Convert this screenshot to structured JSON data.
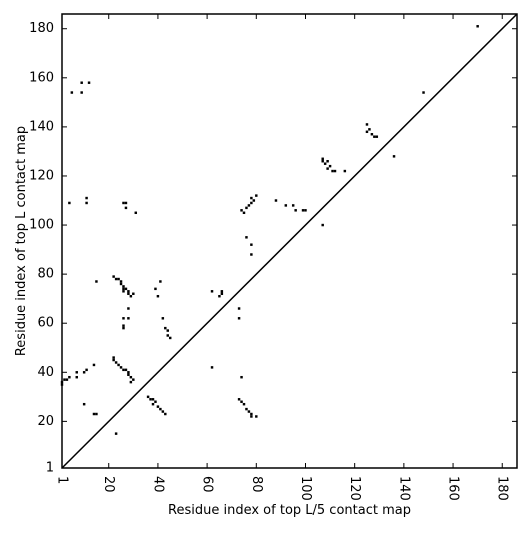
{
  "chart_data": {
    "type": "scatter",
    "title": "",
    "xlabel": "Residue index of top L/5 contact map",
    "ylabel": "Residue index of top L contact map",
    "xlim": [
      1,
      186
    ],
    "ylim": [
      1,
      186
    ],
    "xticks": [
      1,
      20,
      40,
      60,
      80,
      100,
      120,
      140,
      160,
      180
    ],
    "yticks": [
      1,
      20,
      40,
      60,
      80,
      100,
      120,
      140,
      160,
      180
    ],
    "xtick_labels": [
      "1",
      "20",
      "40",
      "60",
      "80",
      "100",
      "120",
      "140",
      "160",
      "180"
    ],
    "ytick_labels": [
      "1",
      "20",
      "40",
      "60",
      "80",
      "100",
      "120",
      "140",
      "160",
      "180"
    ],
    "grid": false,
    "diagonal": true,
    "marker_color": "#000000",
    "upper_triangle_points": [
      [
        4,
        109
      ],
      [
        11,
        111
      ],
      [
        11,
        109
      ],
      [
        5,
        154
      ],
      [
        9,
        158
      ],
      [
        9,
        154
      ],
      [
        12,
        158
      ],
      [
        26,
        109
      ],
      [
        27,
        109
      ],
      [
        27,
        107
      ],
      [
        31,
        105
      ],
      [
        75,
        105
      ],
      [
        74,
        106
      ],
      [
        76,
        107
      ],
      [
        77,
        108
      ],
      [
        78,
        109
      ],
      [
        79,
        110
      ],
      [
        78,
        111
      ],
      [
        80,
        112
      ],
      [
        88,
        110
      ],
      [
        92,
        108
      ],
      [
        95,
        108
      ],
      [
        96,
        106
      ],
      [
        99,
        106
      ],
      [
        100,
        106
      ],
      [
        107,
        100
      ],
      [
        107,
        127
      ],
      [
        107,
        126
      ],
      [
        108,
        125
      ],
      [
        109,
        126
      ],
      [
        110,
        124
      ],
      [
        109,
        123
      ],
      [
        111,
        122
      ],
      [
        112,
        122
      ],
      [
        116,
        122
      ],
      [
        125,
        141
      ],
      [
        126,
        139
      ],
      [
        125,
        138
      ],
      [
        127,
        137
      ],
      [
        128,
        136
      ],
      [
        129,
        136
      ],
      [
        136,
        128
      ],
      [
        148,
        154
      ],
      [
        170,
        181
      ]
    ],
    "lower_triangle_points": [
      [
        1,
        35
      ],
      [
        1,
        36
      ],
      [
        2,
        37
      ],
      [
        3,
        37
      ],
      [
        4,
        38
      ],
      [
        7,
        38
      ],
      [
        7,
        40
      ],
      [
        10,
        40
      ],
      [
        11,
        41
      ],
      [
        10,
        27
      ],
      [
        14,
        43
      ],
      [
        14,
        23
      ],
      [
        15,
        23
      ],
      [
        15,
        77
      ],
      [
        22,
        79
      ],
      [
        23,
        78
      ],
      [
        24,
        78
      ],
      [
        25,
        77
      ],
      [
        25,
        76
      ],
      [
        26,
        75
      ],
      [
        26,
        74
      ],
      [
        27,
        74
      ],
      [
        28,
        73
      ],
      [
        28,
        72
      ],
      [
        29,
        71
      ],
      [
        30,
        72
      ],
      [
        26,
        73
      ],
      [
        28,
        66
      ],
      [
        26,
        62
      ],
      [
        28,
        62
      ],
      [
        26,
        59
      ],
      [
        26,
        58
      ],
      [
        22,
        46
      ],
      [
        22,
        45
      ],
      [
        23,
        44
      ],
      [
        24,
        43
      ],
      [
        25,
        42
      ],
      [
        26,
        41
      ],
      [
        27,
        41
      ],
      [
        28,
        40
      ],
      [
        28,
        39
      ],
      [
        29,
        38
      ],
      [
        30,
        37
      ],
      [
        29,
        36
      ],
      [
        23,
        15
      ],
      [
        36,
        30
      ],
      [
        37,
        29
      ],
      [
        38,
        29
      ],
      [
        39,
        28
      ],
      [
        38,
        27
      ],
      [
        40,
        26
      ],
      [
        41,
        25
      ],
      [
        42,
        24
      ],
      [
        43,
        23
      ],
      [
        39,
        74
      ],
      [
        40,
        71
      ],
      [
        41,
        77
      ],
      [
        42,
        62
      ],
      [
        43,
        58
      ],
      [
        44,
        57
      ],
      [
        44,
        55
      ],
      [
        45,
        54
      ],
      [
        62,
        73
      ],
      [
        62,
        42
      ],
      [
        65,
        71
      ],
      [
        66,
        72
      ],
      [
        66,
        73
      ],
      [
        73,
        66
      ],
      [
        73,
        62
      ],
      [
        74,
        38
      ],
      [
        73,
        29
      ],
      [
        74,
        28
      ],
      [
        75,
        27
      ],
      [
        76,
        25
      ],
      [
        77,
        24
      ],
      [
        78,
        23
      ],
      [
        78,
        22
      ],
      [
        80,
        22
      ],
      [
        76,
        95
      ],
      [
        78,
        92
      ],
      [
        78,
        88
      ]
    ]
  }
}
